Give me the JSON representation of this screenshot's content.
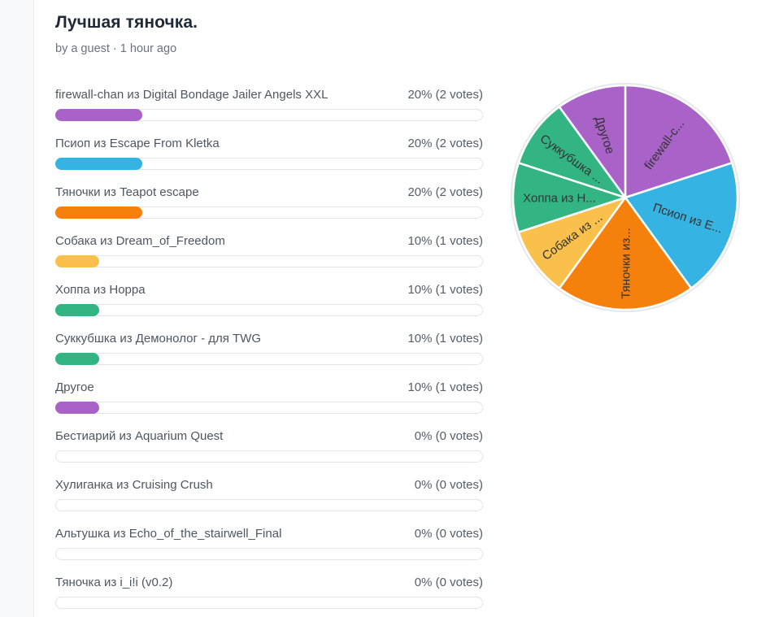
{
  "page": {
    "background": "#f8f9fb",
    "card_background": "#ffffff",
    "card_border": "#e9ebef"
  },
  "poll": {
    "title": "Лучшая тяночка.",
    "byline": "by a guest · 1 hour ago",
    "options": [
      {
        "label": "firewall-chan из Digital Bondage Jailer Angels XXL",
        "result": "20% (2 votes)",
        "percent": 20,
        "color": "#a862c8"
      },
      {
        "label": "Псиоп из Escape From Kletka",
        "result": "20% (2 votes)",
        "percent": 20,
        "color": "#35b3e2"
      },
      {
        "label": "Тяночки из Teapot escape",
        "result": "20% (2 votes)",
        "percent": 20,
        "color": "#f5810c"
      },
      {
        "label": "Собака из Dream_of_Freedom",
        "result": "10% (1 votes)",
        "percent": 10,
        "color": "#f9c04b"
      },
      {
        "label": "Хоппа из Hoppa",
        "result": "10% (1 votes)",
        "percent": 10,
        "color": "#33b583"
      },
      {
        "label": "Суккубшка из Демонолог - для TWG",
        "result": "10% (1 votes)",
        "percent": 10,
        "color": "#33b583"
      },
      {
        "label": "Другое",
        "result": "10% (1 votes)",
        "percent": 10,
        "color": "#a862c8"
      },
      {
        "label": "Бестиарий из Aquarium Quest",
        "result": "0% (0 votes)",
        "percent": 0,
        "color": null
      },
      {
        "label": "Хулиганка из Cruising Crush",
        "result": "0% (0 votes)",
        "percent": 0,
        "color": null
      },
      {
        "label": "Альтушка из Echo_of_the_stairwell_Final",
        "result": "0% (0 votes)",
        "percent": 0,
        "color": null
      },
      {
        "label": "Тяночка из i_i!i (v0.2)",
        "result": "0% (0 votes)",
        "percent": 0,
        "color": null
      }
    ]
  },
  "chart_data": [
    {
      "type": "bar",
      "title": "Лучшая тяночка.",
      "orientation": "horizontal",
      "categories": [
        "firewall-chan из Digital Bondage Jailer Angels XXL",
        "Псиоп из Escape From Kletka",
        "Тяночки из Teapot escape",
        "Собака из Dream_of_Freedom",
        "Хоппа из Hoppa",
        "Суккубшка из Демонолог - для TWG",
        "Другое",
        "Бестиарий из Aquarium Quest",
        "Хулиганка из Cruising Crush",
        "Альтушка из Echo_of_the_stairwell_Final",
        "Тяночка из i_i!i (v0.2)"
      ],
      "values": [
        20,
        20,
        20,
        10,
        10,
        10,
        10,
        0,
        0,
        0,
        0
      ],
      "votes": [
        2,
        2,
        2,
        1,
        1,
        1,
        1,
        0,
        0,
        0,
        0
      ],
      "value_labels": [
        "20% (2 votes)",
        "20% (2 votes)",
        "20% (2 votes)",
        "10% (1 votes)",
        "10% (1 votes)",
        "10% (1 votes)",
        "10% (1 votes)",
        "0% (0 votes)",
        "0% (0 votes)",
        "0% (0 votes)",
        "0% (0 votes)"
      ],
      "xlim": [
        0,
        100
      ],
      "grid": false,
      "legend_position": "none"
    },
    {
      "type": "pie",
      "title": "Лучшая тяночка.",
      "slice_labels": [
        "firewall-c...",
        "Псиоп из E...",
        "Тяночки из...",
        "Собака из ...",
        "Хоппа из H...",
        "Суккубшка ...",
        "Другое"
      ],
      "values": [
        20,
        20,
        20,
        10,
        10,
        10,
        10
      ],
      "colors": [
        "#a862c8",
        "#35b3e2",
        "#f5810c",
        "#f9c04b",
        "#33b583",
        "#33b583",
        "#a862c8"
      ],
      "start": "top",
      "direction": "clockwise",
      "label_color": "#333333",
      "separator_color": "#ffffff",
      "outer_ring_color": "#e4e7eb",
      "legend_position": "none"
    }
  ]
}
